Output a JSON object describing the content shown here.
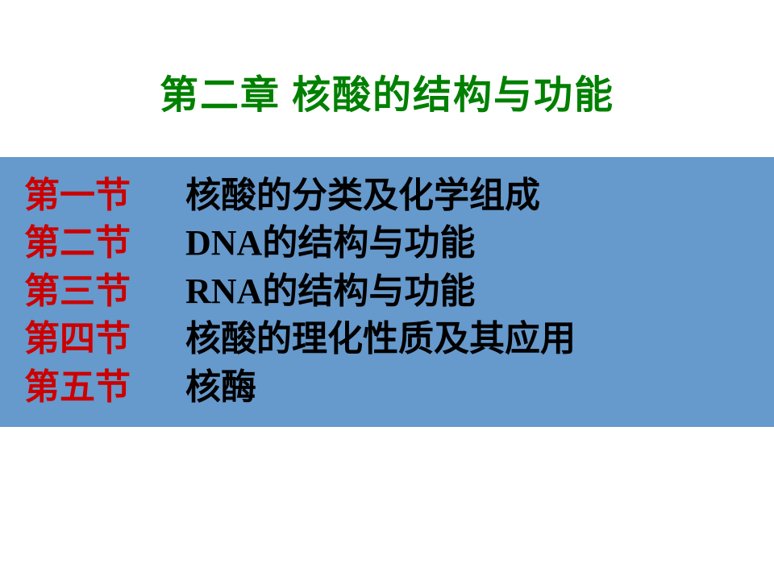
{
  "title": "第二章   核酸的结构与功能",
  "colors": {
    "title_color": "#008000",
    "label_color": "#cc0000",
    "text_color": "#000000",
    "box_background": "#6699cc",
    "page_background": "#ffffff"
  },
  "typography": {
    "title_fontsize": 48,
    "body_fontsize": 44,
    "font_family": "SimSun",
    "font_weight": "bold"
  },
  "sections": [
    {
      "label": "第一节",
      "title": "核酸的分类及化学组成"
    },
    {
      "label": "第二节",
      "title": "DNA的结构与功能"
    },
    {
      "label": "第三节",
      "title": "RNA的结构与功能"
    },
    {
      "label": "第四节",
      "title": "核酸的理化性质及其应用"
    },
    {
      "label": "第五节",
      "title": "核酶"
    }
  ]
}
